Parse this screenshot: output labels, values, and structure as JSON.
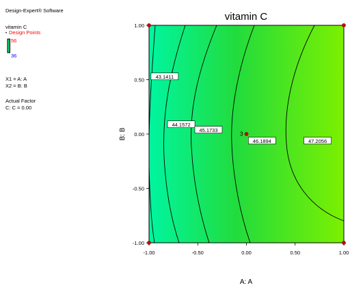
{
  "software_label": "Design-Expert® Software",
  "response_label": "vitamin C",
  "design_points_label": "Design Points",
  "legend_high": "56",
  "legend_low": "36",
  "factor_x1": "X1 = A: A",
  "factor_x2": "X2 = B: B",
  "actual_factor_label": "Actual Factor",
  "actual_factor_value": "C: C = 0.00",
  "colors": {
    "low": "#00f5a0",
    "high": "#7cf000",
    "design_point_text": "#ff0000",
    "low_text": "#0000ff",
    "design_point": "#cc0000"
  },
  "chart_data": {
    "type": "contour",
    "title": "vitamin C",
    "xlabel": "A: A",
    "ylabel": "B: B",
    "xlim": [
      -1.0,
      1.0
    ],
    "ylim": [
      -1.0,
      1.0
    ],
    "x_ticks": [
      "-1.00",
      "-0.50",
      "0.00",
      "0.50",
      "1.00"
    ],
    "y_ticks": [
      "-1.00",
      "-0.50",
      "0.00",
      "0.50",
      "1.00"
    ],
    "contours": [
      {
        "level": "43.1411"
      },
      {
        "level": "44.1572"
      },
      {
        "level": "45.1733"
      },
      {
        "level": "46.1894"
      },
      {
        "level": "47.2056"
      }
    ],
    "contour_label_points": [
      {
        "x": -0.98,
        "y": 0.53
      },
      {
        "x": -0.81,
        "y": 0.09
      },
      {
        "x": -0.53,
        "y": 0.04
      },
      {
        "x": 0.02,
        "y": -0.06
      },
      {
        "x": 0.59,
        "y": -0.06
      }
    ],
    "design_points": [
      {
        "x": -1.0,
        "y": 1.0
      },
      {
        "x": 1.0,
        "y": 1.0
      },
      {
        "x": -1.0,
        "y": -1.0
      },
      {
        "x": 1.0,
        "y": -1.0
      },
      {
        "x": 0.0,
        "y": 0.0,
        "count": "3"
      }
    ]
  }
}
